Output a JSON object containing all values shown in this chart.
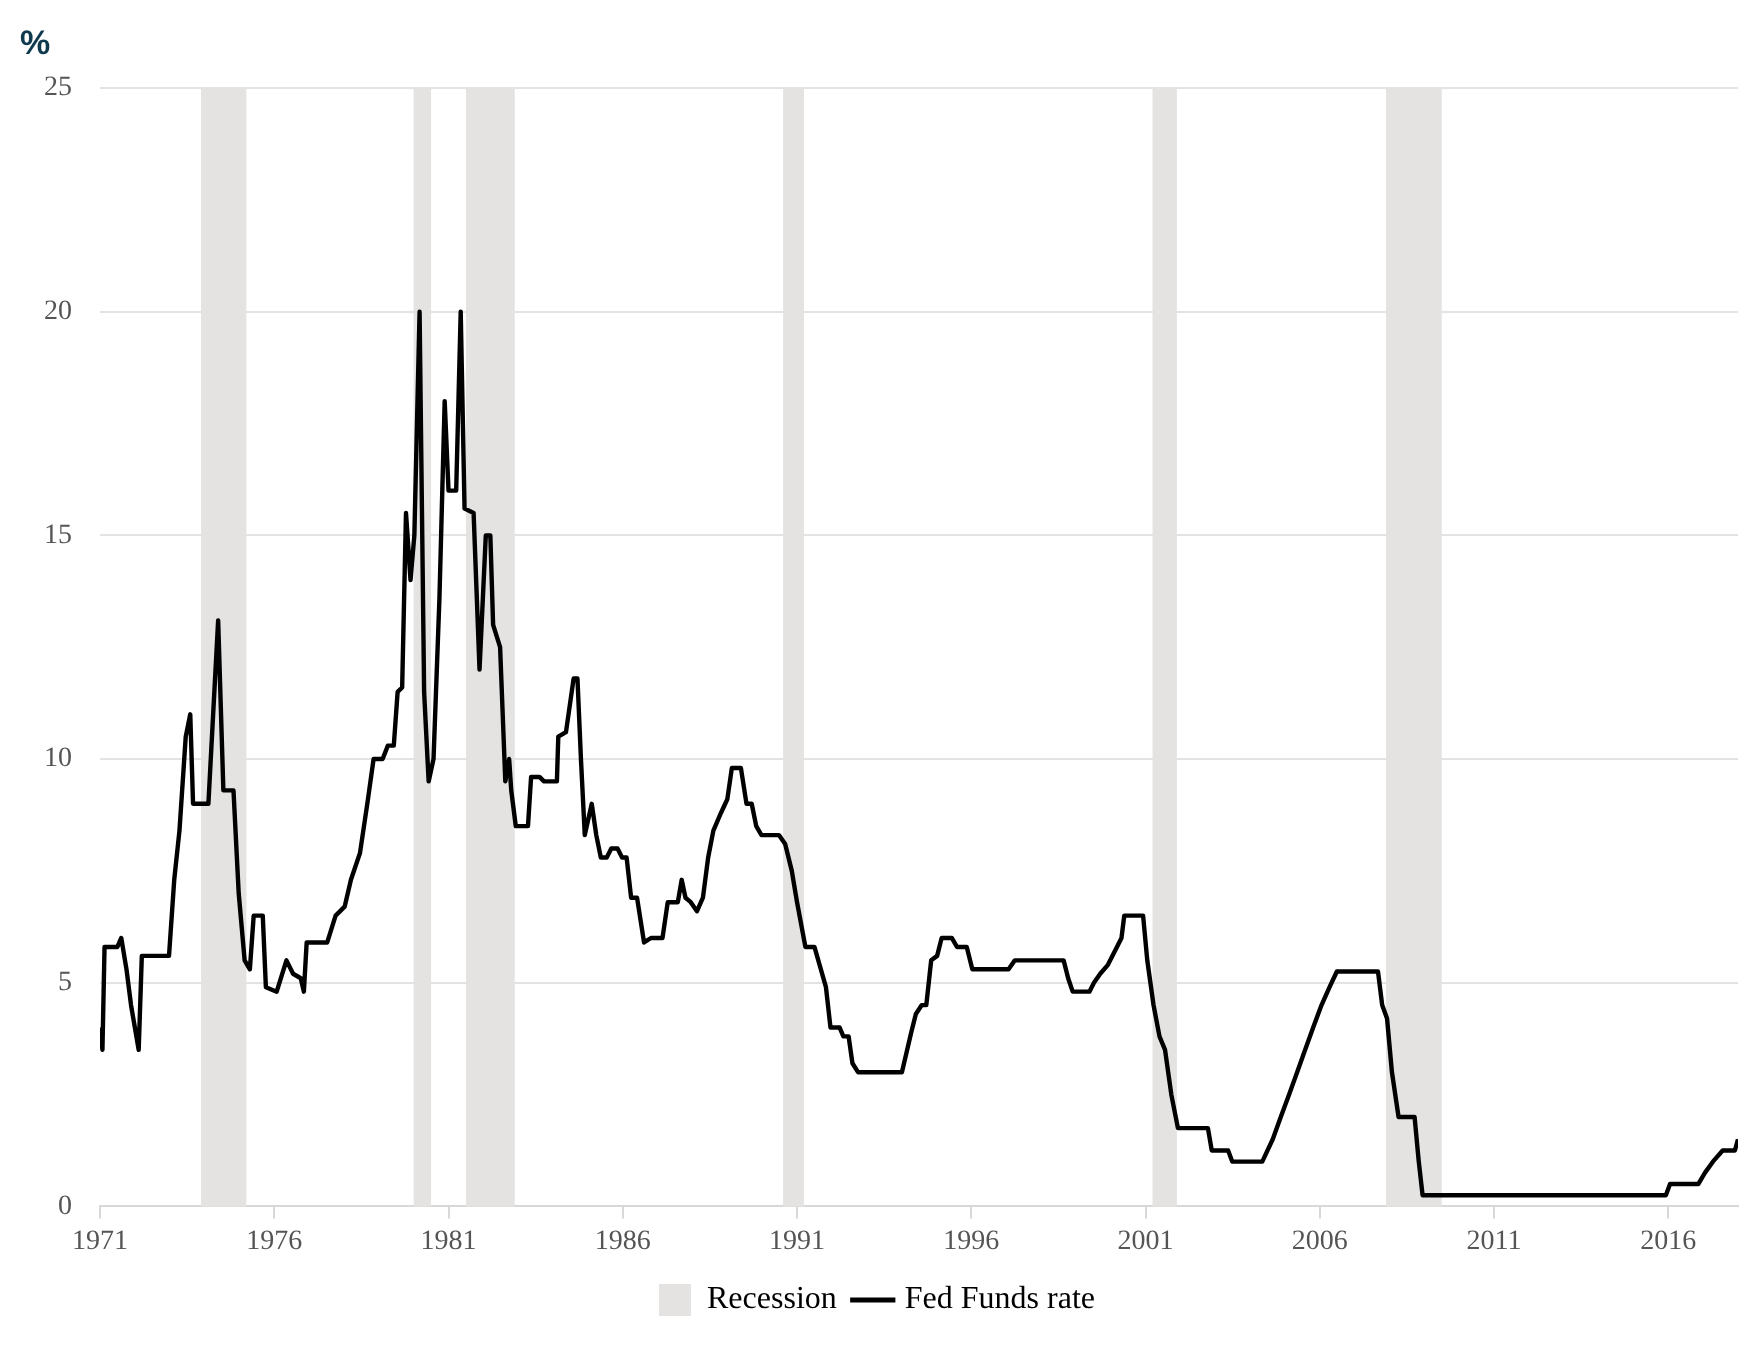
{
  "chart_data": {
    "type": "line",
    "ylabel": "%",
    "xlim": [
      1971,
      2018
    ],
    "xticks": [
      1971,
      1976,
      1981,
      1986,
      1991,
      1996,
      2001,
      2006,
      2011,
      2016
    ],
    "ylim": [
      0,
      25
    ],
    "yticks": [
      0,
      5,
      10,
      15,
      20,
      25
    ],
    "grid": "y",
    "legend": "bottom",
    "marker": "none",
    "line_style": "solid",
    "bands": [
      {
        "axis": "x",
        "from": 1973.9,
        "to": 1975.2,
        "label": "Recession",
        "color": "#e4e3e2"
      },
      {
        "axis": "x",
        "from": 1980.0,
        "to": 1980.5,
        "color": "#e4e3e2"
      },
      {
        "axis": "x",
        "from": 1981.5,
        "to": 1982.9,
        "color": "#e4e3e2"
      },
      {
        "axis": "x",
        "from": 1990.6,
        "to": 1991.2,
        "color": "#e4e3e2"
      },
      {
        "axis": "x",
        "from": 2001.2,
        "to": 2001.9,
        "color": "#e4e3e2"
      },
      {
        "axis": "x",
        "from": 2007.9,
        "to": 2009.5,
        "color": "#e4e3e2"
      }
    ],
    "series": [
      {
        "name": "Fed Funds rate",
        "color": "#000000",
        "x": [
          1971.0,
          1971.07,
          1971.13,
          1971.5,
          1971.61,
          1971.76,
          1971.89,
          1972.11,
          1972.2,
          1972.98,
          1973.13,
          1973.28,
          1973.46,
          1973.59,
          1973.67,
          1974.11,
          1974.39,
          1974.54,
          1974.83,
          1974.98,
          1975.15,
          1975.3,
          1975.41,
          1975.67,
          1975.76,
          1976.07,
          1976.35,
          1976.54,
          1976.76,
          1976.85,
          1976.93,
          1977.52,
          1977.76,
          1978.02,
          1978.2,
          1978.46,
          1978.67,
          1978.85,
          1979.11,
          1979.26,
          1979.43,
          1979.54,
          1979.67,
          1979.78,
          1979.91,
          1980.02,
          1980.17,
          1980.3,
          1980.43,
          1980.57,
          1980.74,
          1980.89,
          1981.0,
          1981.22,
          1981.35,
          1981.46,
          1981.72,
          1981.89,
          1982.07,
          1982.2,
          1982.28,
          1982.48,
          1982.63,
          1982.74,
          1982.8,
          1982.93,
          1983.28,
          1983.37,
          1983.61,
          1983.74,
          1984.11,
          1984.15,
          1984.37,
          1984.59,
          1984.7,
          1984.8,
          1984.91,
          1985.11,
          1985.24,
          1985.37,
          1985.54,
          1985.67,
          1985.85,
          1985.98,
          1986.11,
          1986.24,
          1986.41,
          1986.61,
          1986.81,
          1987.14,
          1987.29,
          1987.58,
          1987.69,
          1987.8,
          1987.95,
          1988.13,
          1988.3,
          1988.45,
          1988.6,
          1988.82,
          1989.0,
          1989.13,
          1989.39,
          1989.55,
          1989.7,
          1989.83,
          1989.98,
          1990.48,
          1990.66,
          1990.85,
          1991.0,
          1991.24,
          1991.5,
          1991.83,
          1991.96,
          1992.22,
          1992.33,
          1992.48,
          1992.59,
          1992.75,
          1994.01,
          1994.28,
          1994.41,
          1994.58,
          1994.71,
          1994.85,
          1995.02,
          1995.15,
          1995.44,
          1995.59,
          1995.87,
          1996.03,
          1997.07,
          1997.25,
          1998.65,
          1998.78,
          1998.91,
          1999.39,
          1999.52,
          1999.7,
          1999.92,
          2000.18,
          2000.31,
          2000.39,
          2000.93,
          2001.05,
          2001.23,
          2001.4,
          2001.56,
          2001.74,
          2001.93,
          2002.79,
          2002.9,
          2003.37,
          2003.49,
          2004.35,
          2004.65,
          2004.88,
          2005.12,
          2005.35,
          2005.58,
          2005.81,
          2006.05,
          2006.28,
          2006.49,
          2007.67,
          2007.79,
          2007.93,
          2008.07,
          2008.26,
          2008.72,
          2008.84,
          2008.95,
          2015.93,
          2016.05,
          2016.86,
          2017.05,
          2017.28,
          2017.56,
          2017.91,
          2018.0
        ],
        "values": [
          4.0,
          3.5,
          5.8,
          5.8,
          6.0,
          5.3,
          4.5,
          3.5,
          5.6,
          5.6,
          7.3,
          8.4,
          10.5,
          11.0,
          9.0,
          9.0,
          13.1,
          9.3,
          9.3,
          7.0,
          5.5,
          5.3,
          6.5,
          6.5,
          4.9,
          4.8,
          5.5,
          5.2,
          5.1,
          4.8,
          5.9,
          5.9,
          6.5,
          6.7,
          7.3,
          7.9,
          9.0,
          10.0,
          10.0,
          10.3,
          10.3,
          11.5,
          11.6,
          15.5,
          14.0,
          15.0,
          20.0,
          11.5,
          9.5,
          10.0,
          13.6,
          18.0,
          16.0,
          16.0,
          20.0,
          15.6,
          15.5,
          12.0,
          15.0,
          15.0,
          13.0,
          12.5,
          9.5,
          10.0,
          9.3,
          8.5,
          8.5,
          9.6,
          9.6,
          9.5,
          9.5,
          10.5,
          10.6,
          11.8,
          11.8,
          10.0,
          8.3,
          9.0,
          8.3,
          7.8,
          7.8,
          8.0,
          8.0,
          7.8,
          7.8,
          6.9,
          6.9,
          5.9,
          6.0,
          6.0,
          6.8,
          6.8,
          7.3,
          6.9,
          6.8,
          6.6,
          6.9,
          7.8,
          8.4,
          8.8,
          9.1,
          9.8,
          9.8,
          9.0,
          9.0,
          8.5,
          8.3,
          8.3,
          8.1,
          7.5,
          6.8,
          5.8,
          5.8,
          4.9,
          4.0,
          4.0,
          3.8,
          3.8,
          3.2,
          3.0,
          3.0,
          3.9,
          4.3,
          4.5,
          4.5,
          5.5,
          5.6,
          6.0,
          6.0,
          5.8,
          5.8,
          5.3,
          5.3,
          5.5,
          5.5,
          5.1,
          4.8,
          4.8,
          5.0,
          5.2,
          5.4,
          5.8,
          6.0,
          6.5,
          6.5,
          5.5,
          4.5,
          3.8,
          3.5,
          2.5,
          1.75,
          1.75,
          1.25,
          1.25,
          1.0,
          1.0,
          1.5,
          2.0,
          2.5,
          3.0,
          3.5,
          4.0,
          4.5,
          4.9,
          5.25,
          5.25,
          4.5,
          4.2,
          3.0,
          2.0,
          2.0,
          1.0,
          0.25,
          0.25,
          0.5,
          0.5,
          0.75,
          1.0,
          1.25,
          1.25,
          1.5
        ]
      }
    ]
  }
}
